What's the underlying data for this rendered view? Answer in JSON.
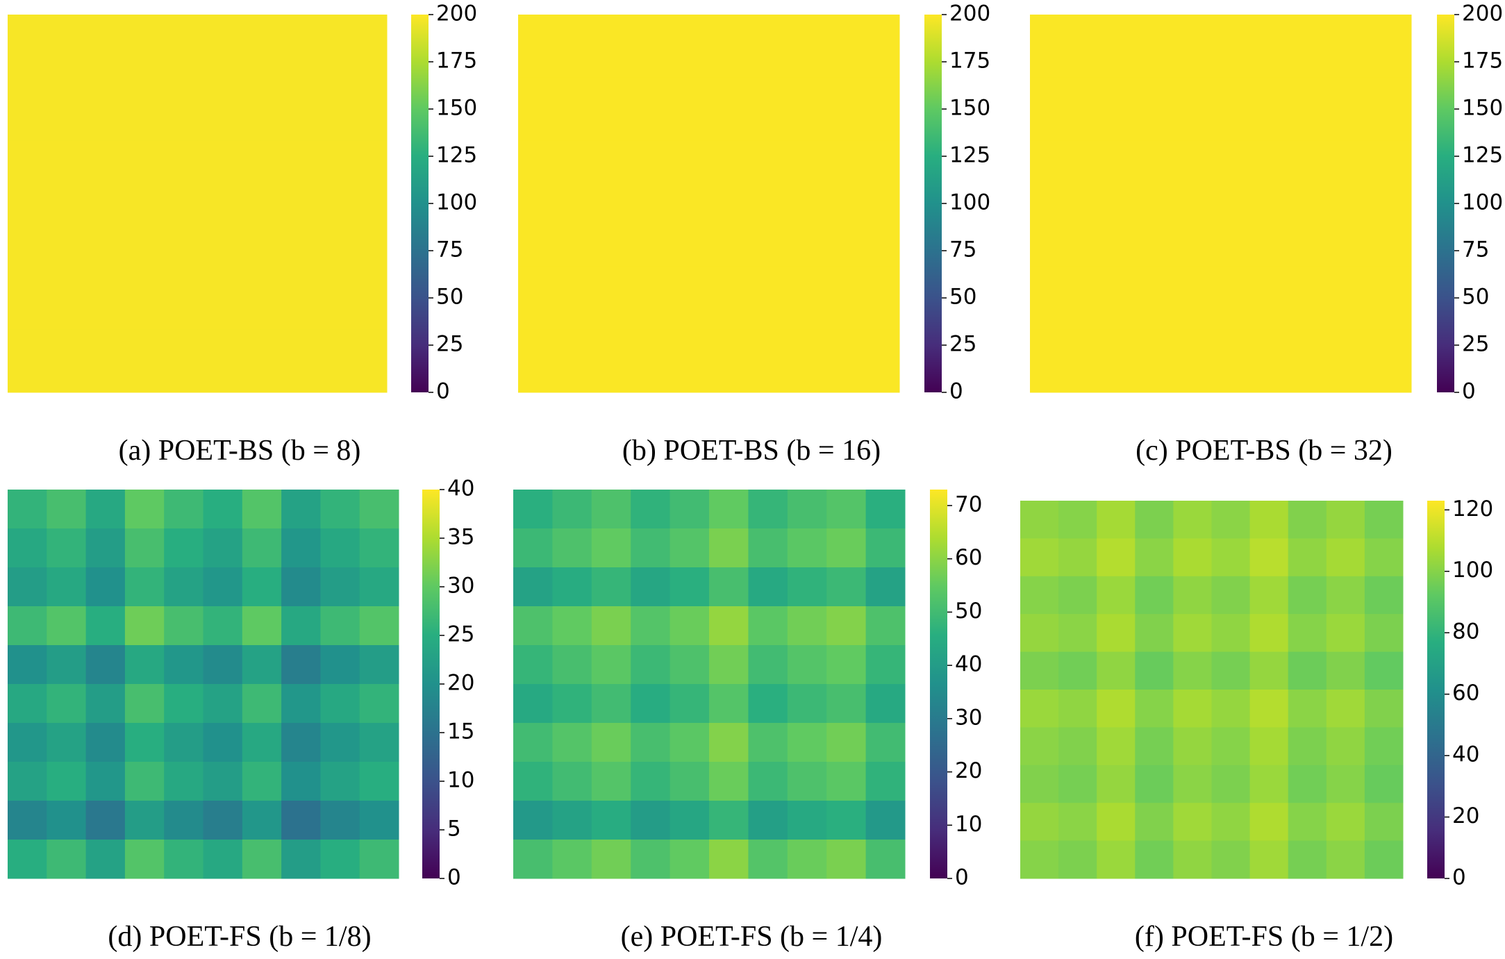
{
  "chart_data": [
    {
      "type": "heatmap",
      "caption": "(a) POET-BS (b = 8)",
      "colormap": "viridis",
      "clim": [
        0,
        200
      ],
      "cbar_ticks": [
        0,
        25,
        50,
        75,
        100,
        125,
        150,
        175,
        200
      ],
      "values": [
        [
          198,
          198,
          198,
          198,
          198,
          198
        ],
        [
          198,
          198,
          198,
          198,
          198,
          198
        ],
        [
          198,
          198,
          198,
          198,
          198,
          198
        ],
        [
          198,
          198,
          198,
          198,
          198,
          198
        ],
        [
          198,
          198,
          198,
          198,
          198,
          198
        ],
        [
          198,
          198,
          198,
          198,
          198,
          198
        ]
      ]
    },
    {
      "type": "heatmap",
      "caption": "(b) POET-BS (b = 16)",
      "colormap": "viridis",
      "clim": [
        0,
        200
      ],
      "cbar_ticks": [
        0,
        25,
        50,
        75,
        100,
        125,
        150,
        175,
        200
      ],
      "values": [
        [
          199,
          199,
          199,
          199,
          199,
          199
        ],
        [
          199,
          199,
          199,
          199,
          199,
          199
        ],
        [
          199,
          199,
          199,
          199,
          199,
          199
        ],
        [
          199,
          199,
          199,
          199,
          199,
          199
        ],
        [
          199,
          199,
          199,
          199,
          199,
          199
        ],
        [
          199,
          199,
          199,
          199,
          199,
          199
        ]
      ]
    },
    {
      "type": "heatmap",
      "caption": "(c) POET-BS (b = 32)",
      "colormap": "viridis",
      "clim": [
        0,
        200
      ],
      "cbar_ticks": [
        0,
        25,
        50,
        75,
        100,
        125,
        150,
        175,
        200
      ],
      "values": [
        [
          199,
          199,
          199,
          199,
          199,
          199
        ],
        [
          199,
          199,
          199,
          199,
          199,
          199
        ],
        [
          199,
          199,
          199,
          199,
          199,
          199
        ],
        [
          199,
          199,
          199,
          199,
          199,
          199
        ],
        [
          199,
          199,
          199,
          199,
          199,
          199
        ],
        [
          199,
          199,
          199,
          199,
          199,
          199
        ]
      ]
    },
    {
      "type": "heatmap",
      "caption": "(d) POET-FS (b = 1/8)",
      "colormap": "viridis",
      "clim": [
        0,
        40
      ],
      "cbar_ticks": [
        0,
        5,
        10,
        15,
        20,
        25,
        30,
        35,
        40
      ],
      "values": [
        [
          26,
          28,
          24,
          30,
          27,
          25,
          29,
          23,
          26,
          28
        ],
        [
          24,
          26,
          22,
          28,
          25,
          23,
          27,
          21,
          24,
          26
        ],
        [
          22,
          24,
          20,
          26,
          23,
          21,
          25,
          19,
          22,
          24
        ],
        [
          27,
          29,
          25,
          31,
          28,
          26,
          30,
          24,
          27,
          29
        ],
        [
          20,
          22,
          18,
          24,
          21,
          19,
          23,
          17,
          20,
          22
        ],
        [
          24,
          26,
          22,
          28,
          25,
          23,
          27,
          21,
          24,
          26
        ],
        [
          21,
          23,
          19,
          25,
          22,
          20,
          24,
          18,
          21,
          23
        ],
        [
          23,
          25,
          21,
          27,
          24,
          22,
          26,
          20,
          23,
          25
        ],
        [
          18,
          20,
          16,
          22,
          19,
          17,
          21,
          15,
          18,
          20
        ],
        [
          25,
          27,
          23,
          29,
          26,
          24,
          28,
          22,
          25,
          27
        ]
      ]
    },
    {
      "type": "heatmap",
      "caption": "(e) POET-FS (b = 1/4)",
      "colormap": "viridis",
      "clim": [
        0,
        73
      ],
      "cbar_ticks": [
        0,
        10,
        20,
        30,
        40,
        50,
        60,
        70
      ],
      "values": [
        [
          46,
          49,
          52,
          47,
          50,
          55,
          48,
          51,
          53,
          46
        ],
        [
          49,
          52,
          55,
          50,
          53,
          58,
          51,
          54,
          56,
          49
        ],
        [
          42,
          45,
          48,
          43,
          46,
          51,
          44,
          47,
          49,
          42
        ],
        [
          52,
          55,
          58,
          53,
          56,
          61,
          54,
          57,
          59,
          52
        ],
        [
          48,
          51,
          54,
          49,
          52,
          57,
          50,
          53,
          55,
          48
        ],
        [
          44,
          47,
          50,
          45,
          48,
          53,
          46,
          49,
          51,
          44
        ],
        [
          50,
          53,
          56,
          51,
          54,
          59,
          52,
          55,
          57,
          50
        ],
        [
          47,
          50,
          53,
          48,
          51,
          56,
          49,
          52,
          54,
          47
        ],
        [
          39,
          42,
          45,
          40,
          43,
          48,
          41,
          44,
          46,
          39
        ],
        [
          51,
          54,
          57,
          52,
          55,
          60,
          53,
          56,
          58,
          51
        ]
      ]
    },
    {
      "type": "heatmap",
      "caption": "(f) POET-FS (b = 1/2)",
      "colormap": "viridis",
      "clim": [
        0,
        123
      ],
      "cbar_ticks": [
        0,
        20,
        40,
        60,
        80,
        100,
        120
      ],
      "values": [
        [
          102,
          100,
          106,
          98,
          104,
          101,
          107,
          99,
          103,
          97
        ],
        [
          105,
          103,
          109,
          101,
          107,
          104,
          110,
          102,
          106,
          100
        ],
        [
          100,
          98,
          104,
          96,
          102,
          99,
          105,
          97,
          101,
          95
        ],
        [
          103,
          101,
          107,
          99,
          105,
          102,
          108,
          100,
          104,
          98
        ],
        [
          98,
          96,
          102,
          94,
          100,
          97,
          103,
          95,
          99,
          93
        ],
        [
          104,
          102,
          108,
          100,
          106,
          103,
          109,
          101,
          105,
          99
        ],
        [
          101,
          99,
          105,
          97,
          103,
          100,
          106,
          98,
          102,
          96
        ],
        [
          99,
          97,
          103,
          95,
          101,
          98,
          104,
          96,
          100,
          94
        ],
        [
          103,
          101,
          107,
          99,
          105,
          102,
          108,
          100,
          104,
          98
        ],
        [
          100,
          98,
          104,
          96,
          102,
          99,
          105,
          97,
          101,
          95
        ]
      ]
    }
  ]
}
